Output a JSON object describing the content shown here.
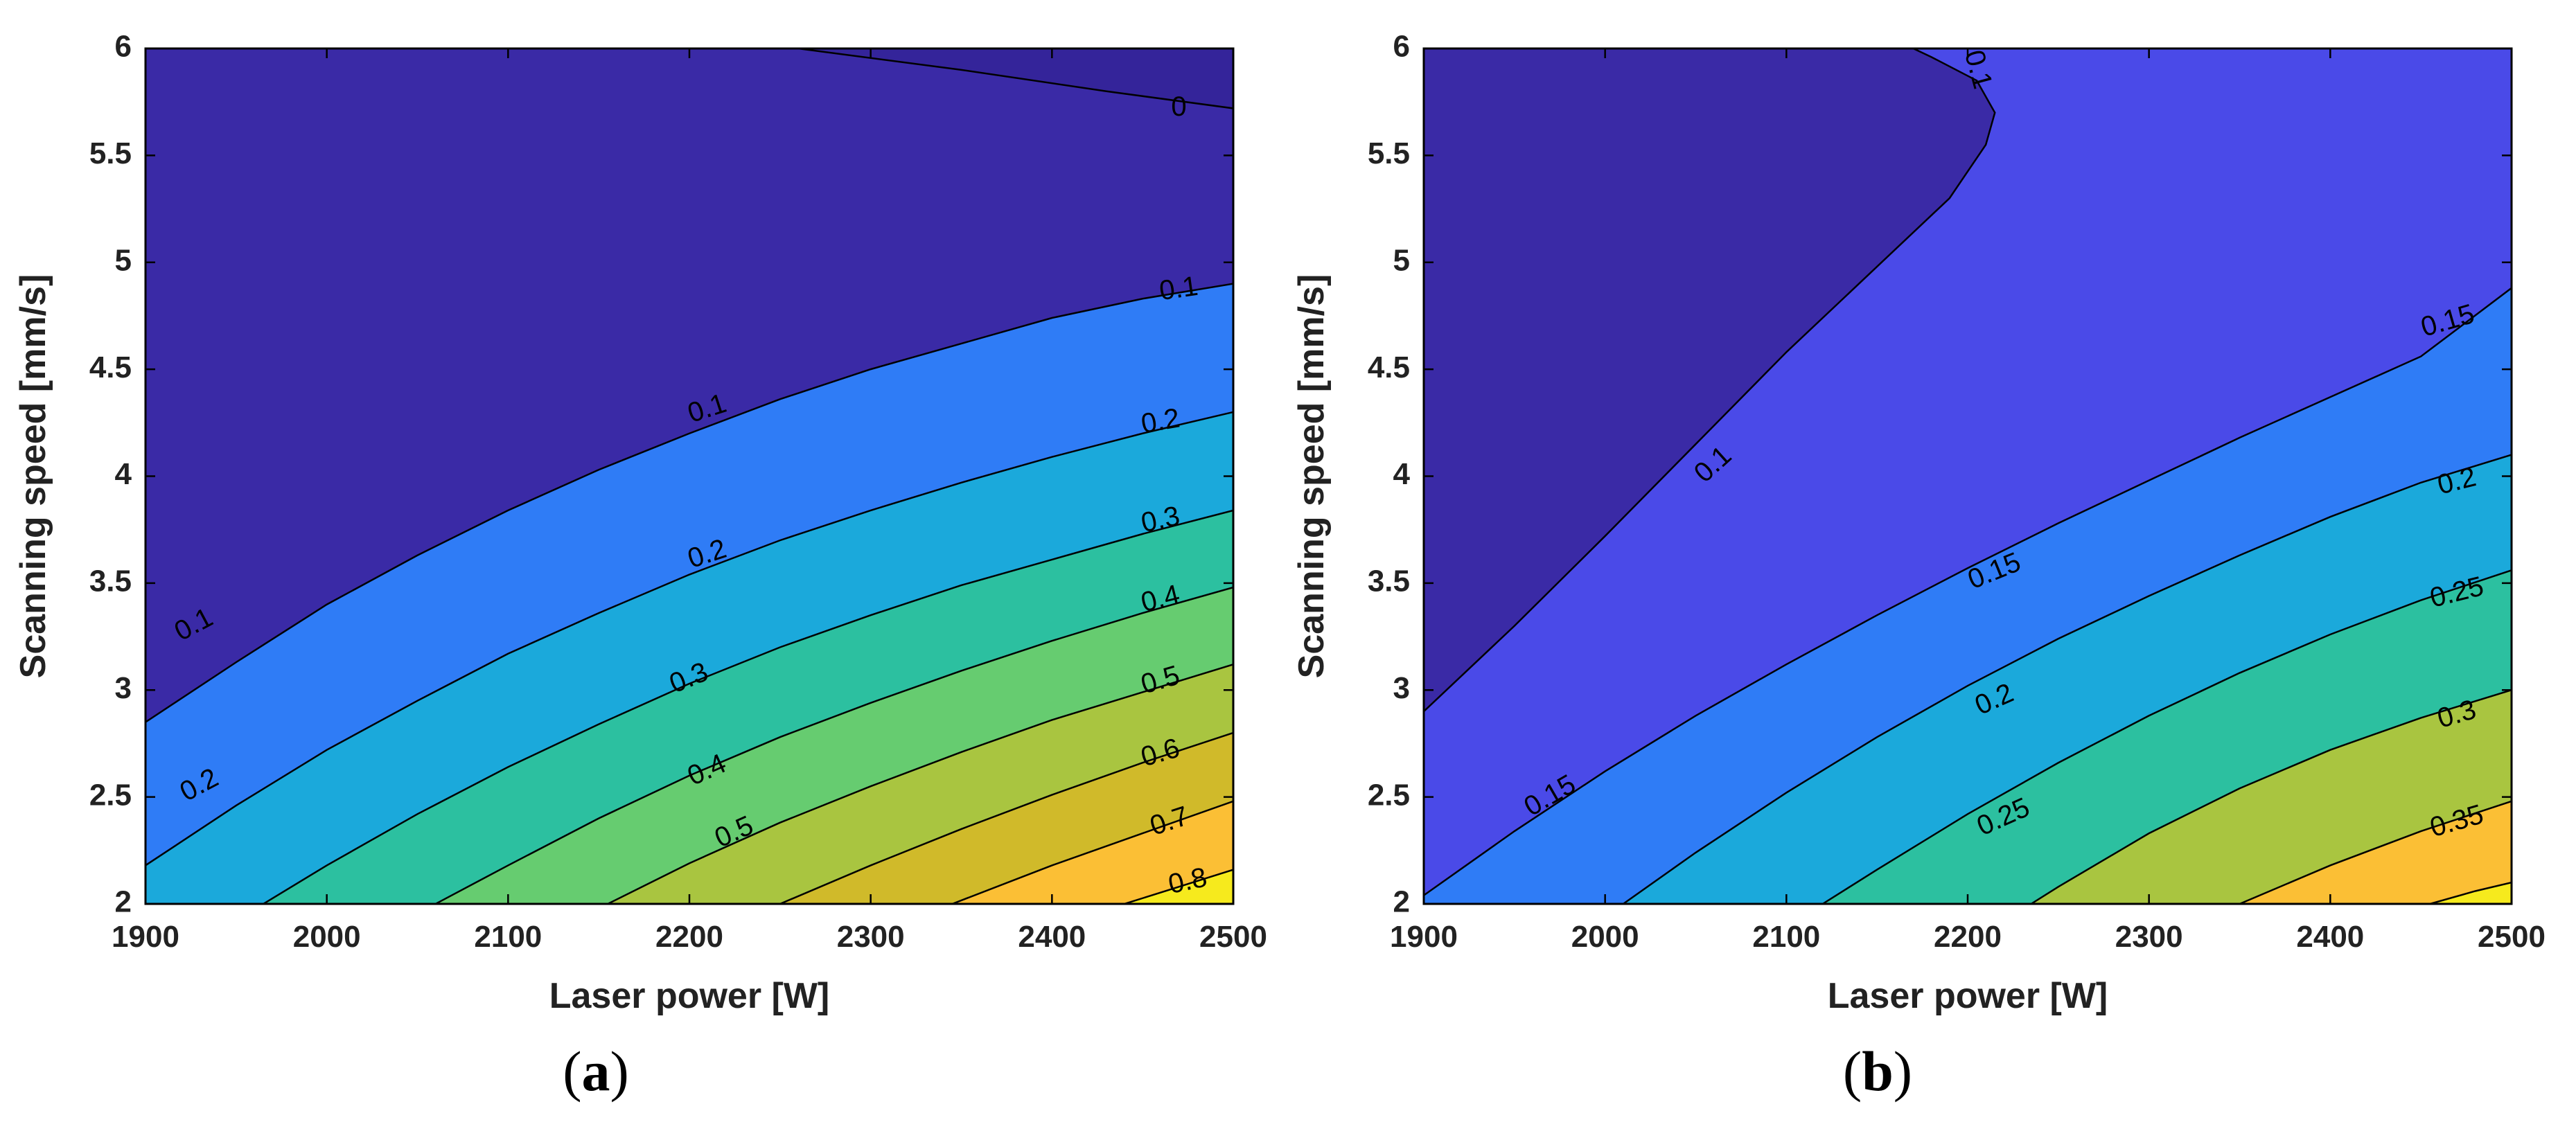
{
  "chart_data": [
    {
      "panel": "a",
      "type": "contour",
      "caption": "a",
      "xlabel": "Laser power [W]",
      "ylabel": "Scanning speed [mm/s]",
      "xlim": [
        1900,
        2500
      ],
      "ylim": [
        2,
        6
      ],
      "xticks": [
        1900,
        2000,
        2100,
        2200,
        2300,
        2400,
        2500
      ],
      "yticks": [
        2,
        2.5,
        3,
        3.5,
        4,
        4.5,
        5,
        5.5,
        6
      ],
      "ytick_labels": [
        "2",
        "2.5",
        "3",
        "3.5",
        "4",
        "4.5",
        "5",
        "5.5",
        "6"
      ],
      "background_color": "#3a2aa6",
      "levels": [
        {
          "label": "0",
          "fill_above": "#3a2aa6",
          "points": [
            [
              2260,
              6.0
            ],
            [
              2350,
              5.9
            ],
            [
              2430,
              5.8
            ],
            [
              2500,
              5.72
            ]
          ]
        },
        {
          "label": "0.1",
          "fill_above": "#4a4ae8",
          "points": [
            [
              1900,
              2.85
            ],
            [
              1950,
              3.13
            ],
            [
              2000,
              3.4
            ],
            [
              2050,
              3.63
            ],
            [
              2100,
              3.84
            ],
            [
              2150,
              4.03
            ],
            [
              2200,
              4.2
            ],
            [
              2250,
              4.36
            ],
            [
              2300,
              4.5
            ],
            [
              2350,
              4.62
            ],
            [
              2400,
              4.74
            ],
            [
              2450,
              4.83
            ],
            [
              2500,
              4.9
            ]
          ]
        },
        {
          "label": "0.2",
          "fill_above": "#2f7cf6",
          "points": [
            [
              1900,
              2.18
            ],
            [
              1950,
              2.46
            ],
            [
              2000,
              2.72
            ],
            [
              2050,
              2.95
            ],
            [
              2100,
              3.17
            ],
            [
              2150,
              3.36
            ],
            [
              2200,
              3.54
            ],
            [
              2250,
              3.7
            ],
            [
              2300,
              3.84
            ],
            [
              2350,
              3.97
            ],
            [
              2400,
              4.09
            ],
            [
              2450,
              4.2
            ],
            [
              2500,
              4.3
            ]
          ]
        },
        {
          "label": "0.3",
          "fill_above": "#1ba9db",
          "points": [
            [
              1965,
              2.0
            ],
            [
              2000,
              2.18
            ],
            [
              2050,
              2.42
            ],
            [
              2100,
              2.64
            ],
            [
              2150,
              2.84
            ],
            [
              2200,
              3.03
            ],
            [
              2250,
              3.2
            ],
            [
              2300,
              3.35
            ],
            [
              2350,
              3.49
            ],
            [
              2400,
              3.61
            ],
            [
              2450,
              3.73
            ],
            [
              2500,
              3.84
            ]
          ]
        },
        {
          "label": "0.4",
          "fill_above": "#2cc0a0",
          "points": [
            [
              2060,
              2.0
            ],
            [
              2100,
              2.18
            ],
            [
              2150,
              2.4
            ],
            [
              2200,
              2.6
            ],
            [
              2250,
              2.78
            ],
            [
              2300,
              2.94
            ],
            [
              2350,
              3.09
            ],
            [
              2400,
              3.23
            ],
            [
              2450,
              3.36
            ],
            [
              2500,
              3.48
            ]
          ]
        },
        {
          "label": "0.5",
          "fill_above": "#66cc70",
          "points": [
            [
              2155,
              2.0
            ],
            [
              2200,
              2.19
            ],
            [
              2250,
              2.38
            ],
            [
              2300,
              2.55
            ],
            [
              2350,
              2.71
            ],
            [
              2400,
              2.86
            ],
            [
              2450,
              2.99
            ],
            [
              2500,
              3.12
            ]
          ]
        },
        {
          "label": "0.6",
          "fill_above": "#a9c540",
          "points": [
            [
              2250,
              2.0
            ],
            [
              2300,
              2.18
            ],
            [
              2350,
              2.35
            ],
            [
              2400,
              2.51
            ],
            [
              2450,
              2.66
            ],
            [
              2500,
              2.8
            ]
          ]
        },
        {
          "label": "0.7",
          "fill_above": "#d0ba2a",
          "points": [
            [
              2345,
              2.0
            ],
            [
              2400,
              2.18
            ],
            [
              2450,
              2.33
            ],
            [
              2500,
              2.48
            ]
          ]
        },
        {
          "label": "0.8",
          "fill_above": "#fbbf35",
          "points": [
            [
              2440,
              2.0
            ],
            [
              2470,
              2.08
            ],
            [
              2500,
              2.16
            ]
          ]
        }
      ],
      "top_region_color": "#3a2aa6",
      "bottom_right_color": "#f6ea1d",
      "contour_labels": [
        {
          "text": "0",
          "at": [
            2470,
            5.72
          ],
          "angle": 0
        },
        {
          "text": "0.1",
          "at": [
            2470,
            4.87
          ],
          "angle": -8
        },
        {
          "text": "0.1",
          "at": [
            2210,
            4.31
          ],
          "angle": -18
        },
        {
          "text": "0.1",
          "at": [
            1927,
            3.3
          ],
          "angle": -28
        },
        {
          "text": "0.2",
          "at": [
            2460,
            4.25
          ],
          "angle": -10
        },
        {
          "text": "0.2",
          "at": [
            2210,
            3.63
          ],
          "angle": -18
        },
        {
          "text": "0.2",
          "at": [
            1930,
            2.55
          ],
          "angle": -28
        },
        {
          "text": "0.3",
          "at": [
            2460,
            3.79
          ],
          "angle": -12
        },
        {
          "text": "0.3",
          "at": [
            2200,
            3.05
          ],
          "angle": -22
        },
        {
          "text": "0.4",
          "at": [
            2460,
            3.42
          ],
          "angle": -14
        },
        {
          "text": "0.4",
          "at": [
            2210,
            2.62
          ],
          "angle": -24
        },
        {
          "text": "0.5",
          "at": [
            2460,
            3.04
          ],
          "angle": -16
        },
        {
          "text": "0.5",
          "at": [
            2225,
            2.33
          ],
          "angle": -24
        },
        {
          "text": "0.6",
          "at": [
            2460,
            2.7
          ],
          "angle": -16
        },
        {
          "text": "0.7",
          "at": [
            2465,
            2.38
          ],
          "angle": -18
        },
        {
          "text": "0.8",
          "at": [
            2475,
            2.1
          ],
          "angle": -12
        }
      ]
    },
    {
      "panel": "b",
      "type": "contour",
      "caption": "b",
      "xlabel": "Laser power [W]",
      "ylabel": "Scanning speed [mm/s]",
      "xlim": [
        1900,
        2500
      ],
      "ylim": [
        2,
        6
      ],
      "xticks": [
        1900,
        2000,
        2100,
        2200,
        2300,
        2400,
        2500
      ],
      "yticks": [
        2,
        2.5,
        3,
        3.5,
        4,
        4.5,
        5,
        5.5,
        6
      ],
      "ytick_labels": [
        "2",
        "2.5",
        "3",
        "3.5",
        "4",
        "4.5",
        "5",
        "5.5",
        "6"
      ],
      "background_color": "#4a4ae8",
      "levels": [
        {
          "label": "0.1",
          "fill_above": "#3a2aa6",
          "closed_left": true,
          "points": [
            [
              1900,
              2.9
            ],
            [
              1950,
              3.3
            ],
            [
              2000,
              3.72
            ],
            [
              2050,
              4.15
            ],
            [
              2100,
              4.58
            ],
            [
              2150,
              4.98
            ],
            [
              2190,
              5.3
            ],
            [
              2210,
              5.55
            ],
            [
              2215,
              5.7
            ],
            [
              2205,
              5.85
            ],
            [
              2180,
              5.96
            ],
            [
              2170,
              6.0
            ]
          ]
        },
        {
          "label": "0.15",
          "fill_above": "#4a4ae8",
          "points": [
            [
              1900,
              2.04
            ],
            [
              1950,
              2.34
            ],
            [
              2000,
              2.62
            ],
            [
              2050,
              2.88
            ],
            [
              2100,
              3.12
            ],
            [
              2150,
              3.35
            ],
            [
              2200,
              3.57
            ],
            [
              2250,
              3.78
            ],
            [
              2300,
              3.98
            ],
            [
              2350,
              4.18
            ],
            [
              2400,
              4.37
            ],
            [
              2450,
              4.56
            ],
            [
              2500,
              4.88
            ]
          ]
        },
        {
          "label": "0.2",
          "fill_above": "#2f7cf6",
          "points": [
            [
              2010,
              2.0
            ],
            [
              2050,
              2.24
            ],
            [
              2100,
              2.52
            ],
            [
              2150,
              2.78
            ],
            [
              2200,
              3.02
            ],
            [
              2250,
              3.24
            ],
            [
              2300,
              3.44
            ],
            [
              2350,
              3.63
            ],
            [
              2400,
              3.81
            ],
            [
              2450,
              3.97
            ],
            [
              2500,
              4.1
            ]
          ]
        },
        {
          "label": "0.25",
          "fill_above": "#1ba9db",
          "points": [
            [
              2120,
              2.0
            ],
            [
              2150,
              2.16
            ],
            [
              2200,
              2.42
            ],
            [
              2250,
              2.66
            ],
            [
              2300,
              2.88
            ],
            [
              2350,
              3.08
            ],
            [
              2400,
              3.26
            ],
            [
              2450,
              3.42
            ],
            [
              2500,
              3.56
            ]
          ]
        },
        {
          "label": "0.3",
          "fill_above": "#2cc0a0",
          "points": [
            [
              2235,
              2.0
            ],
            [
              2250,
              2.08
            ],
            [
              2300,
              2.33
            ],
            [
              2350,
              2.54
            ],
            [
              2400,
              2.72
            ],
            [
              2450,
              2.87
            ],
            [
              2500,
              3.0
            ]
          ]
        },
        {
          "label": "0.35",
          "fill_above": "#a9c540",
          "points": [
            [
              2350,
              2.0
            ],
            [
              2400,
              2.18
            ],
            [
              2450,
              2.34
            ],
            [
              2500,
              2.48
            ]
          ]
        },
        {
          "label": "",
          "fill_above": "#fbbf35",
          "points": [
            [
              2455,
              2.0
            ],
            [
              2480,
              2.06
            ],
            [
              2500,
              2.1
            ]
          ]
        }
      ],
      "bottom_right_color": "#f6ea1d",
      "contour_labels": [
        {
          "text": "0.1",
          "at": [
            2205,
            5.9
          ],
          "angle": 75
        },
        {
          "text": "0.1",
          "at": [
            2060,
            4.05
          ],
          "angle": -42
        },
        {
          "text": "0.15",
          "at": [
            2465,
            4.72
          ],
          "angle": -16
        },
        {
          "text": "0.15",
          "at": [
            2215,
            3.55
          ],
          "angle": -22
        },
        {
          "text": "0.15",
          "at": [
            1970,
            2.5
          ],
          "angle": -30
        },
        {
          "text": "0.2",
          "at": [
            2470,
            3.97
          ],
          "angle": -14
        },
        {
          "text": "0.2",
          "at": [
            2215,
            2.95
          ],
          "angle": -24
        },
        {
          "text": "0.25",
          "at": [
            2470,
            3.45
          ],
          "angle": -14
        },
        {
          "text": "0.25",
          "at": [
            2220,
            2.4
          ],
          "angle": -24
        },
        {
          "text": "0.3",
          "at": [
            2470,
            2.88
          ],
          "angle": -16
        },
        {
          "text": "0.35",
          "at": [
            2470,
            2.38
          ],
          "angle": -16
        }
      ]
    }
  ]
}
